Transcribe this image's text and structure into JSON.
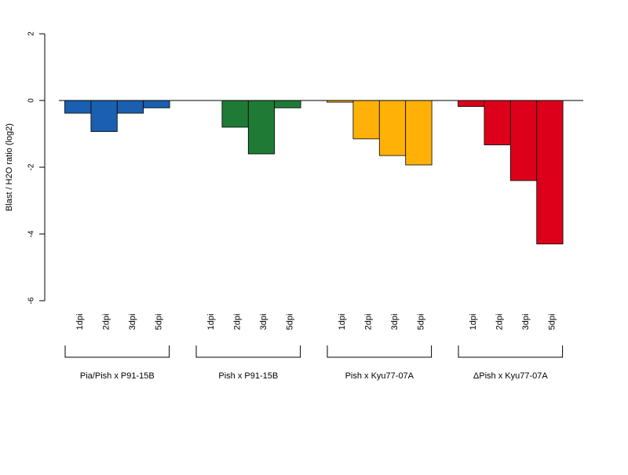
{
  "chart_data": {
    "type": "bar",
    "ylabel": "Blast / H2O ratio (log2)",
    "ylim": [
      -6,
      2
    ],
    "yticks": [
      -6,
      -4,
      -2,
      0,
      2
    ],
    "baseline": 0,
    "grid": false,
    "legend": "none",
    "groups": [
      {
        "name": "Pia/Pish x P91-15B",
        "color": "#1a5fb0",
        "categories": [
          "1dpi",
          "2dpi",
          "3dpi",
          "5dpi"
        ],
        "values": [
          -0.38,
          -0.93,
          -0.38,
          -0.22
        ]
      },
      {
        "name": "Pish x P91-15B",
        "color": "#1f7a36",
        "categories": [
          "1dpi",
          "2dpi",
          "3dpi",
          "5dpi"
        ],
        "values": [
          0.0,
          -0.8,
          -1.6,
          -0.22
        ]
      },
      {
        "name": "Pish x Kyu77-07A",
        "color": "#ffb108",
        "categories": [
          "1dpi",
          "2dpi",
          "3dpi",
          "5dpi"
        ],
        "values": [
          -0.05,
          -1.15,
          -1.65,
          -1.93
        ]
      },
      {
        "name": "ΔPish x Kyu77-07A",
        "color": "#dc001a",
        "categories": [
          "1dpi",
          "2dpi",
          "3dpi",
          "5dpi"
        ],
        "values": [
          -0.18,
          -1.33,
          -2.4,
          -4.3
        ]
      }
    ]
  }
}
